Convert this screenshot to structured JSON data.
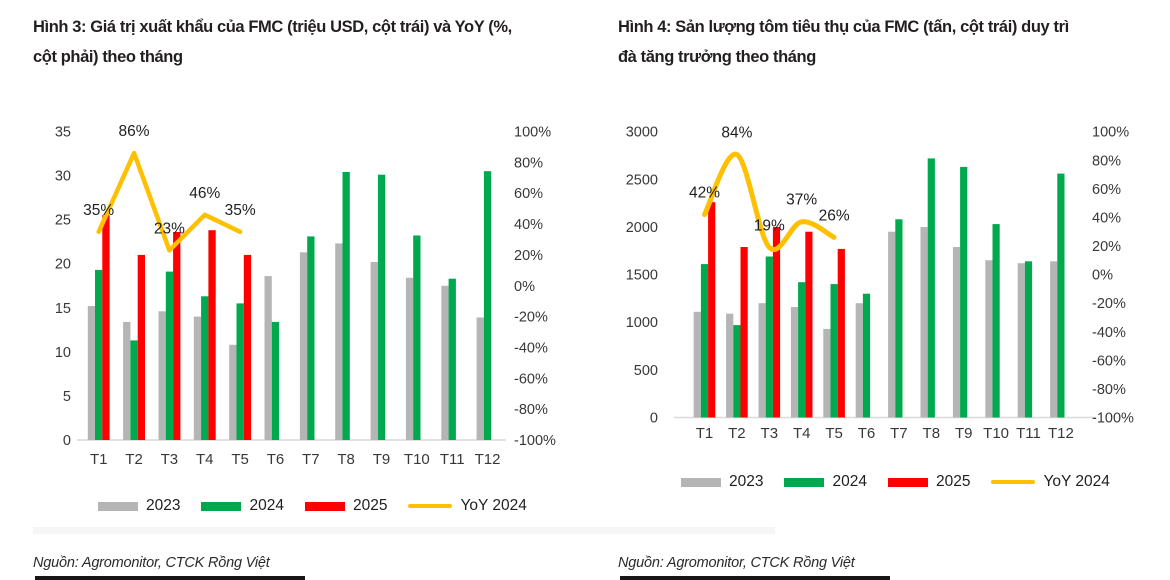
{
  "page": {
    "background": "#ffffff"
  },
  "charts": [
    {
      "title_lines": [
        "Hình 3: Giá trị xuất khẩu của FMC (triệu USD, cột trái) và YoY (%,",
        "cột phải) theo tháng"
      ],
      "source": "Nguồn: Agromonitor, CTCK Rồng Việt",
      "chart_data": {
        "type": "bar+line",
        "title": "Giá trị xuất khẩu của FMC (triệu USD, cột trái) và YoY (%, cột phải) theo tháng",
        "categories": [
          "T1",
          "T2",
          "T3",
          "T4",
          "T5",
          "T6",
          "T7",
          "T8",
          "T9",
          "T10",
          "T11",
          "T12"
        ],
        "series": [
          {
            "name": "2023",
            "color": "#b5b5b5",
            "values": [
              15.2,
              13.4,
              14.6,
              14.0,
              10.8,
              18.6,
              21.3,
              22.3,
              20.2,
              18.4,
              17.5,
              13.9
            ]
          },
          {
            "name": "2024",
            "color": "#00a84e",
            "values": [
              19.3,
              11.3,
              19.1,
              16.3,
              15.5,
              13.4,
              23.1,
              30.4,
              30.1,
              23.2,
              18.3,
              30.5
            ]
          },
          {
            "name": "2025",
            "color": "#fe0000",
            "values": [
              25.5,
              21.0,
              23.6,
              23.8,
              21.0
            ]
          }
        ],
        "line": {
          "name": "YoY 2024",
          "color": "#ffc000",
          "values": [
            35,
            86,
            23,
            46,
            35
          ],
          "labels": [
            "35%",
            "86%",
            "23%",
            "46%",
            "35%"
          ],
          "smooth": false
        },
        "left_axis": {
          "min": 0,
          "max": 35,
          "step": 5,
          "ticks": [
            0,
            5,
            10,
            15,
            20,
            25,
            30,
            35
          ]
        },
        "right_axis": {
          "min": -100,
          "max": 100,
          "step": 20,
          "ticks": [
            -100,
            -80,
            -60,
            -40,
            -20,
            0,
            20,
            40,
            60,
            80,
            100
          ],
          "format": "percent"
        },
        "grid": false,
        "legend_position": "bottom"
      }
    },
    {
      "title_lines": [
        "Hình 4: Sản lượng tôm tiêu thụ của FMC (tấn, cột trái) duy trì",
        "đà tăng trưởng theo tháng"
      ],
      "source": "Nguồn: Agromonitor, CTCK Rồng Việt",
      "chart_data": {
        "type": "bar+line",
        "title": "Sản lượng tôm tiêu thụ của FMC (tấn, cột trái) duy trì đà tăng trưởng theo tháng",
        "categories": [
          "T1",
          "T2",
          "T3",
          "T4",
          "T5",
          "T6",
          "T7",
          "T8",
          "T9",
          "T10",
          "T11",
          "T12"
        ],
        "series": [
          {
            "name": "2023",
            "color": "#b5b5b5",
            "values": [
              1110,
              1090,
              1200,
              1160,
              930,
              1200,
              1950,
              2000,
              1790,
              1650,
              1620,
              1640
            ]
          },
          {
            "name": "2024",
            "color": "#00a84e",
            "values": [
              1610,
              970,
              1690,
              1420,
              1400,
              1300,
              2080,
              2720,
              2630,
              2030,
              1640,
              2560
            ]
          },
          {
            "name": "2025",
            "color": "#fe0000",
            "values": [
              2260,
              1790,
              2000,
              1950,
              1770
            ]
          }
        ],
        "line": {
          "name": "YoY 2024",
          "color": "#ffc000",
          "values": [
            42,
            84,
            19,
            37,
            26
          ],
          "labels": [
            "42%",
            "84%",
            "19%",
            "37%",
            "26%"
          ],
          "smooth": true
        },
        "left_axis": {
          "min": 0,
          "max": 3000,
          "step": 500,
          "ticks": [
            0,
            500,
            1000,
            1500,
            2000,
            2500,
            3000
          ]
        },
        "right_axis": {
          "min": -100,
          "max": 100,
          "step": 20,
          "ticks": [
            -100,
            -80,
            -60,
            -40,
            -20,
            0,
            20,
            40,
            60,
            80,
            100
          ],
          "format": "percent"
        },
        "grid": false,
        "legend_position": "bottom"
      }
    }
  ]
}
